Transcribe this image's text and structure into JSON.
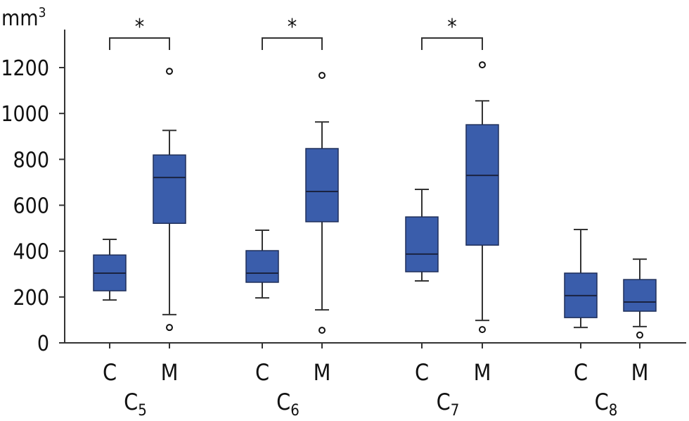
{
  "chart_data": {
    "type": "box",
    "title": "",
    "ylabel": "mm",
    "ylabel_superscript": "3",
    "ylim": [
      0,
      1300
    ],
    "yticks": [
      "0",
      "200",
      "400",
      "600",
      "800",
      "1000",
      "1200"
    ],
    "grid": false,
    "colors": {
      "box": "#3a5dab",
      "box_edge": "#1f2f5a",
      "line": "#333333"
    },
    "groups": [
      {
        "main": "C",
        "sub": "5",
        "significance": "*",
        "boxes": [
          {
            "label": "C",
            "min": 187,
            "q1": 227,
            "median": 304,
            "q3": 383,
            "max": 451,
            "outliers": []
          },
          {
            "label": "M",
            "min": 123,
            "q1": 521,
            "median": 721,
            "q3": 819,
            "max": 926,
            "outliers": [
              1184,
              67
            ]
          }
        ]
      },
      {
        "main": "C",
        "sub": "6",
        "significance": "*",
        "boxes": [
          {
            "label": "C",
            "min": 196,
            "q1": 264,
            "median": 304,
            "q3": 402,
            "max": 491,
            "outliers": []
          },
          {
            "label": "M",
            "min": 144,
            "q1": 528,
            "median": 660,
            "q3": 847,
            "max": 963,
            "outliers": [
              1166,
              55
            ]
          }
        ]
      },
      {
        "main": "C",
        "sub": "7",
        "significance": "*",
        "boxes": [
          {
            "label": "C",
            "min": 270,
            "q1": 310,
            "median": 387,
            "q3": 549,
            "max": 669,
            "outliers": []
          },
          {
            "label": "M",
            "min": 98,
            "q1": 426,
            "median": 730,
            "q3": 951,
            "max": 1055,
            "outliers": [
              1212,
              58
            ]
          }
        ]
      },
      {
        "main": "C",
        "sub": "8",
        "significance": "",
        "boxes": [
          {
            "label": "C",
            "min": 67,
            "q1": 110,
            "median": 206,
            "q3": 304,
            "max": 494,
            "outliers": []
          },
          {
            "label": "M",
            "min": 71,
            "q1": 138,
            "median": 178,
            "q3": 276,
            "max": 365,
            "outliers": [
              34
            ]
          }
        ]
      }
    ]
  }
}
